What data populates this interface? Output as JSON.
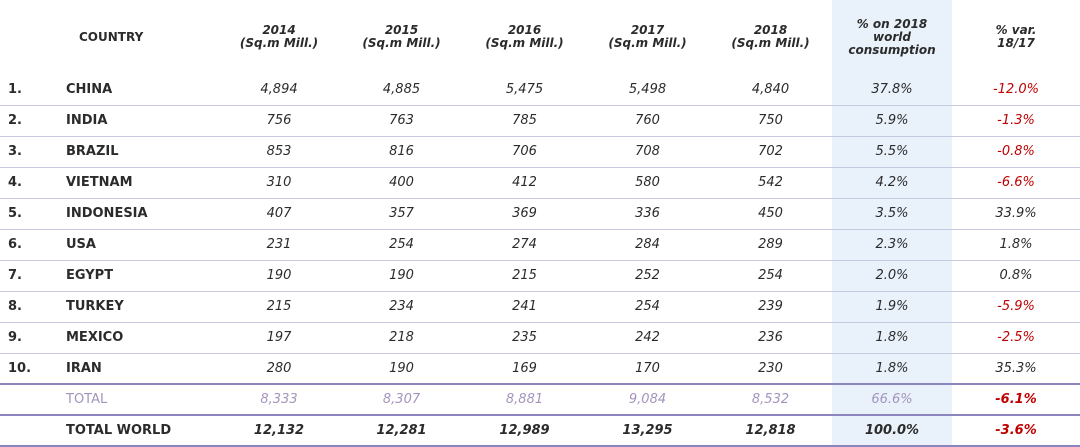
{
  "chart_data": {
    "type": "table",
    "headers": {
      "country": "COUNTRY",
      "y2014": [
        "2014",
        "(Sq.m Mill.)"
      ],
      "y2015": [
        "2015",
        "(Sq.m Mill.)"
      ],
      "y2016": [
        "2016",
        "(Sq.m Mill.)"
      ],
      "y2017": [
        "2017",
        "(Sq.m Mill.)"
      ],
      "y2018": [
        "2018",
        "(Sq.m Mill.)"
      ],
      "share": [
        "% on 2018",
        "world",
        "consumption"
      ],
      "var": [
        "% var.",
        "18/17"
      ]
    },
    "rows": [
      {
        "rank": "1.",
        "country": "CHINA",
        "y2014": "4,894",
        "y2015": "4,885",
        "y2016": "5,475",
        "y2017": "5,498",
        "y2018": "4,840",
        "share": "37.8%",
        "var": "-12.0%"
      },
      {
        "rank": "2.",
        "country": "INDIA",
        "y2014": "756",
        "y2015": "763",
        "y2016": "785",
        "y2017": "760",
        "y2018": "750",
        "share": "5.9%",
        "var": "-1.3%"
      },
      {
        "rank": "3.",
        "country": "BRAZIL",
        "y2014": "853",
        "y2015": "816",
        "y2016": "706",
        "y2017": "708",
        "y2018": "702",
        "share": "5.5%",
        "var": "-0.8%"
      },
      {
        "rank": "4.",
        "country": "VIETNAM",
        "y2014": "310",
        "y2015": "400",
        "y2016": "412",
        "y2017": "580",
        "y2018": "542",
        "share": "4.2%",
        "var": "-6.6%"
      },
      {
        "rank": "5.",
        "country": "INDONESIA",
        "y2014": "407",
        "y2015": "357",
        "y2016": "369",
        "y2017": "336",
        "y2018": "450",
        "share": "3.5%",
        "var": "33.9%"
      },
      {
        "rank": "6.",
        "country": "USA",
        "y2014": "231",
        "y2015": "254",
        "y2016": "274",
        "y2017": "284",
        "y2018": "289",
        "share": "2.3%",
        "var": "1.8%"
      },
      {
        "rank": "7.",
        "country": "EGYPT",
        "y2014": "190",
        "y2015": "190",
        "y2016": "215",
        "y2017": "252",
        "y2018": "254",
        "share": "2.0%",
        "var": "0.8%"
      },
      {
        "rank": "8.",
        "country": "TURKEY",
        "y2014": "215",
        "y2015": "234",
        "y2016": "241",
        "y2017": "254",
        "y2018": "239",
        "share": "1.9%",
        "var": "-5.9%"
      },
      {
        "rank": "9.",
        "country": "MEXICO",
        "y2014": "197",
        "y2015": "218",
        "y2016": "235",
        "y2017": "242",
        "y2018": "236",
        "share": "1.8%",
        "var": "-2.5%"
      },
      {
        "rank": "10.",
        "country": "IRAN",
        "y2014": "280",
        "y2015": "190",
        "y2016": "169",
        "y2017": "170",
        "y2018": "230",
        "share": "1.8%",
        "var": "35.3%"
      }
    ],
    "total": {
      "country": "TOTAL",
      "y2014": "8,333",
      "y2015": "8,307",
      "y2016": "8,881",
      "y2017": "9,084",
      "y2018": "8,532",
      "share": "66.6%",
      "var": "-6.1%"
    },
    "total_world": {
      "country": "TOTAL WORLD",
      "y2014": "12,132",
      "y2015": "12,281",
      "y2016": "12,989",
      "y2017": "13,295",
      "y2018": "12,818",
      "share": "100.0%",
      "var": "-3.6%"
    },
    "colors": {
      "negative": "#c00000",
      "share_column_bg": "#e9f1fa",
      "total_row_text": "#a394bd",
      "rule": "#8c84bd"
    }
  }
}
